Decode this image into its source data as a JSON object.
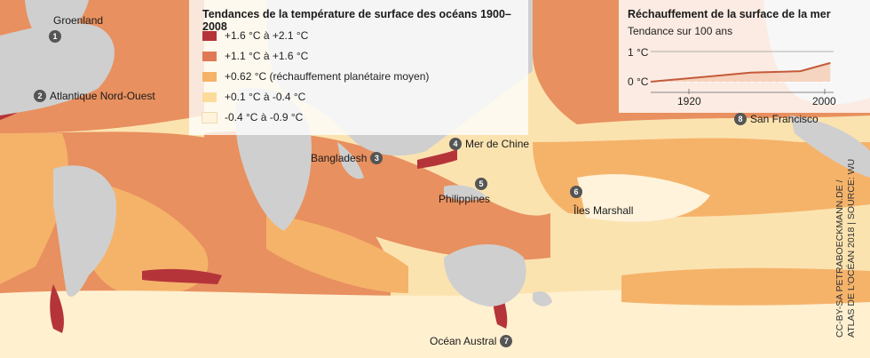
{
  "legend": {
    "title": "Tendances de la température de surface des océans 1900–2008",
    "items": [
      {
        "label": "+1.6 °C à +2.1 °C",
        "color": "#b5343a"
      },
      {
        "label": "+1.1 °C à +1.6 °C",
        "color": "#e07a55"
      },
      {
        "label": "+0.62 °C (réchauffement planétaire moyen)",
        "color": "#f5b36a"
      },
      {
        "label": "+0.1 °C à -0.4 °C",
        "color": "#fbdc9a"
      },
      {
        "label": "-0.4 °C à -0.9 °C",
        "color": "#fff3dc"
      }
    ]
  },
  "inset": {
    "title": "Réchauffement de la surface de la mer",
    "subtitle": "Tendance sur 100 ans",
    "y_labels": [
      "1 °C",
      "0 °C"
    ],
    "x_labels": [
      "1920",
      "2000"
    ],
    "series_trend": [
      {
        "year": 1900,
        "value": 0.0
      },
      {
        "year": 1940,
        "value": 0.2
      },
      {
        "year": 1960,
        "value": 0.3
      },
      {
        "year": 1990,
        "value": 0.35
      },
      {
        "year": 2008,
        "value": 0.62
      }
    ]
  },
  "markers": [
    {
      "num": "1",
      "label": "Groenland"
    },
    {
      "num": "2",
      "label": "Atlantique Nord-Ouest"
    },
    {
      "num": "3",
      "label": "Bangladesh"
    },
    {
      "num": "4",
      "label": "Mer de Chine"
    },
    {
      "num": "5",
      "label": "Philippines"
    },
    {
      "num": "6",
      "label": "Îles Marshall"
    },
    {
      "num": "7",
      "label": "Océan Austral"
    },
    {
      "num": "8",
      "label": "San Francisco"
    }
  ],
  "credit": [
    "CC-BY-SA PETRABOECKMANN.DE /",
    "ATLAS DE L'OCÉAN 2018 | SOURCE: WU"
  ],
  "colors": {
    "land": "#cfcfcf",
    "ocean_base": "#fbe3b0"
  }
}
